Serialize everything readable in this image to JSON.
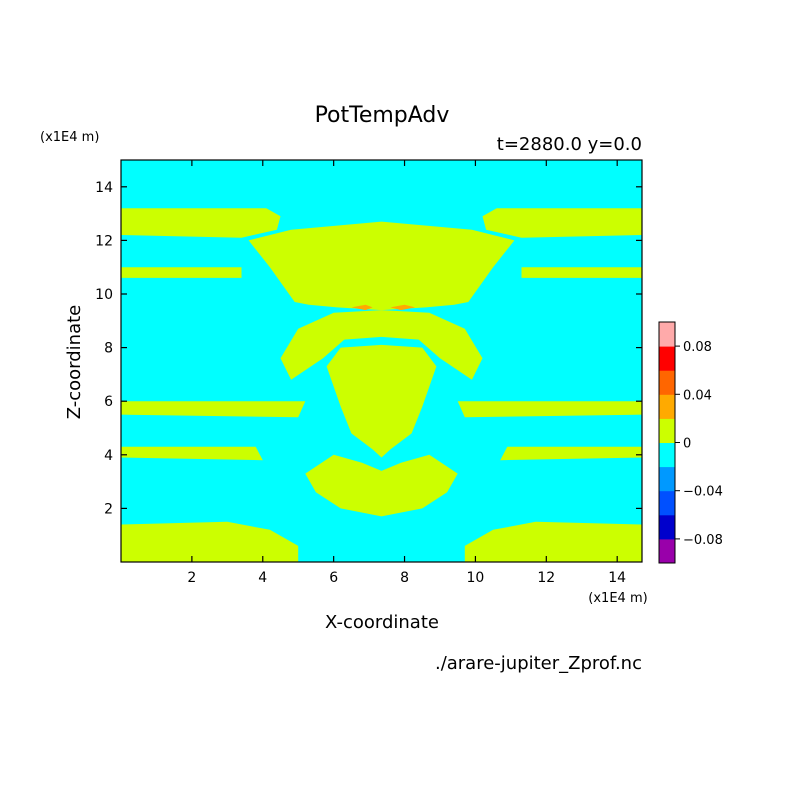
{
  "chart_data": {
    "type": "heatmap",
    "title": "PotTempAdv",
    "subtitle": "t=2880.0 y=0.0",
    "xlabel": "X-coordinate",
    "ylabel": "Z-coordinate",
    "x_unit": "(x1E4 m)",
    "y_unit": "(x1E4 m)",
    "source": "./arare-jupiter_Zprof.nc",
    "xlim": [
      0,
      14.7
    ],
    "ylim": [
      0,
      15
    ],
    "x_ticks": [
      2,
      4,
      6,
      8,
      10,
      12,
      14
    ],
    "y_ticks": [
      2,
      4,
      6,
      8,
      10,
      12,
      14
    ],
    "x_ticklabels": [
      "2",
      "4",
      "6",
      "8",
      "10",
      "12",
      "14"
    ],
    "y_ticklabels": [
      "2",
      "4",
      "6",
      "8",
      "10",
      "12",
      "14"
    ],
    "colorbar": {
      "levels": [
        -0.1,
        -0.08,
        -0.06,
        -0.04,
        -0.02,
        0,
        0.02,
        0.04,
        0.06,
        0.08,
        0.1
      ],
      "colors": [
        "#9900aa",
        "#0000cc",
        "#0050ff",
        "#0099ff",
        "#00ffff",
        "#ccff00",
        "#ffaa00",
        "#ff6600",
        "#ff0000",
        "#ffaaaa"
      ],
      "ticks": [
        -0.08,
        -0.04,
        0,
        0.04,
        0.08
      ],
      "ticklabels": [
        "−0.08",
        "−0.04",
        "0",
        "0.04",
        "0.08"
      ]
    },
    "background_value_class": "-0.02 to 0",
    "regions": [
      {
        "name": "upper-band-left",
        "value_class": "0 to 0.02",
        "points": [
          [
            0,
            13.2
          ],
          [
            4.1,
            13.2
          ],
          [
            4.5,
            12.9
          ],
          [
            4.4,
            12.4
          ],
          [
            3.4,
            12.1
          ],
          [
            0,
            12.2
          ]
        ]
      },
      {
        "name": "upper-band-right",
        "value_class": "0 to 0.02",
        "points": [
          [
            14.7,
            13.2
          ],
          [
            10.6,
            13.2
          ],
          [
            10.2,
            12.9
          ],
          [
            10.3,
            12.4
          ],
          [
            11.3,
            12.1
          ],
          [
            14.7,
            12.2
          ]
        ]
      },
      {
        "name": "upper-arch",
        "value_class": "0 to 0.02",
        "points": [
          [
            3.6,
            12.0
          ],
          [
            4.8,
            12.4
          ],
          [
            7.35,
            12.7
          ],
          [
            9.9,
            12.4
          ],
          [
            11.1,
            12.0
          ],
          [
            10.5,
            11.0
          ],
          [
            9.8,
            9.7
          ],
          [
            9.4,
            9.6
          ],
          [
            8.6,
            9.5
          ],
          [
            7.35,
            9.4
          ],
          [
            6.1,
            9.5
          ],
          [
            5.3,
            9.6
          ],
          [
            4.9,
            9.7
          ],
          [
            4.2,
            11.0
          ]
        ]
      },
      {
        "name": "mid-stripe-left",
        "value_class": "0 to 0.02",
        "points": [
          [
            0,
            11.0
          ],
          [
            3.4,
            11.0
          ],
          [
            3.4,
            10.6
          ],
          [
            0,
            10.6
          ]
        ]
      },
      {
        "name": "mid-stripe-right",
        "value_class": "0 to 0.02",
        "points": [
          [
            14.7,
            11.0
          ],
          [
            11.3,
            11.0
          ],
          [
            11.3,
            10.6
          ],
          [
            14.7,
            10.6
          ]
        ]
      },
      {
        "name": "dome",
        "value_class": "0 to 0.02",
        "points": [
          [
            4.5,
            7.6
          ],
          [
            5.0,
            8.7
          ],
          [
            6.0,
            9.3
          ],
          [
            7.35,
            9.4
          ],
          [
            8.7,
            9.3
          ],
          [
            9.7,
            8.7
          ],
          [
            10.2,
            7.6
          ],
          [
            9.9,
            6.8
          ],
          [
            9.0,
            7.6
          ],
          [
            8.4,
            8.3
          ],
          [
            7.35,
            8.4
          ],
          [
            6.3,
            8.3
          ],
          [
            5.7,
            7.6
          ],
          [
            4.8,
            6.8
          ]
        ]
      },
      {
        "name": "central-body",
        "value_class": "0 to 0.02",
        "points": [
          [
            5.8,
            7.3
          ],
          [
            6.2,
            8.0
          ],
          [
            7.35,
            8.1
          ],
          [
            8.5,
            8.0
          ],
          [
            8.9,
            7.3
          ],
          [
            8.5,
            5.8
          ],
          [
            8.2,
            4.8
          ],
          [
            7.6,
            4.2
          ],
          [
            7.35,
            3.9
          ],
          [
            7.1,
            4.2
          ],
          [
            6.5,
            4.8
          ],
          [
            6.2,
            5.8
          ]
        ]
      },
      {
        "name": "stripe-6-left",
        "value_class": "0 to 0.02",
        "points": [
          [
            0,
            6.0
          ],
          [
            5.2,
            6.0
          ],
          [
            5.0,
            5.4
          ],
          [
            0,
            5.5
          ]
        ]
      },
      {
        "name": "stripe-6-right",
        "value_class": "0 to 0.02",
        "points": [
          [
            14.7,
            6.0
          ],
          [
            9.5,
            6.0
          ],
          [
            9.7,
            5.4
          ],
          [
            14.7,
            5.5
          ]
        ]
      },
      {
        "name": "stripe-4-left",
        "value_class": "0 to 0.02",
        "points": [
          [
            0,
            4.3
          ],
          [
            3.8,
            4.3
          ],
          [
            4.0,
            3.8
          ],
          [
            0,
            3.9
          ]
        ]
      },
      {
        "name": "stripe-4-right",
        "value_class": "0 to 0.02",
        "points": [
          [
            14.7,
            4.3
          ],
          [
            10.9,
            4.3
          ],
          [
            10.7,
            3.8
          ],
          [
            14.7,
            3.9
          ]
        ]
      },
      {
        "name": "lower-structure",
        "value_class": "0 to 0.02",
        "points": [
          [
            5.2,
            3.3
          ],
          [
            6.0,
            4.0
          ],
          [
            6.8,
            3.7
          ],
          [
            7.35,
            3.4
          ],
          [
            7.9,
            3.7
          ],
          [
            8.7,
            4.0
          ],
          [
            9.5,
            3.3
          ],
          [
            9.2,
            2.6
          ],
          [
            8.5,
            2.0
          ],
          [
            7.35,
            1.7
          ],
          [
            6.2,
            2.0
          ],
          [
            5.5,
            2.6
          ]
        ]
      },
      {
        "name": "bottom-left",
        "value_class": "0 to 0.02",
        "points": [
          [
            0,
            0
          ],
          [
            5.0,
            0
          ],
          [
            5.0,
            0.6
          ],
          [
            4.2,
            1.2
          ],
          [
            3.0,
            1.5
          ],
          [
            0,
            1.4
          ]
        ]
      },
      {
        "name": "bottom-right",
        "value_class": "0 to 0.02",
        "points": [
          [
            14.7,
            0
          ],
          [
            9.7,
            0
          ],
          [
            9.7,
            0.6
          ],
          [
            10.5,
            1.2
          ],
          [
            11.7,
            1.5
          ],
          [
            14.7,
            1.4
          ]
        ]
      },
      {
        "name": "orange-spot-left",
        "value_class": "0.02 to 0.04",
        "points": [
          [
            6.5,
            9.5
          ],
          [
            6.9,
            9.6
          ],
          [
            7.1,
            9.5
          ],
          [
            6.9,
            9.4
          ]
        ]
      },
      {
        "name": "orange-spot-right",
        "value_class": "0.02 to 0.04",
        "points": [
          [
            7.6,
            9.5
          ],
          [
            8.0,
            9.6
          ],
          [
            8.3,
            9.5
          ],
          [
            7.9,
            9.4
          ]
        ]
      }
    ]
  }
}
